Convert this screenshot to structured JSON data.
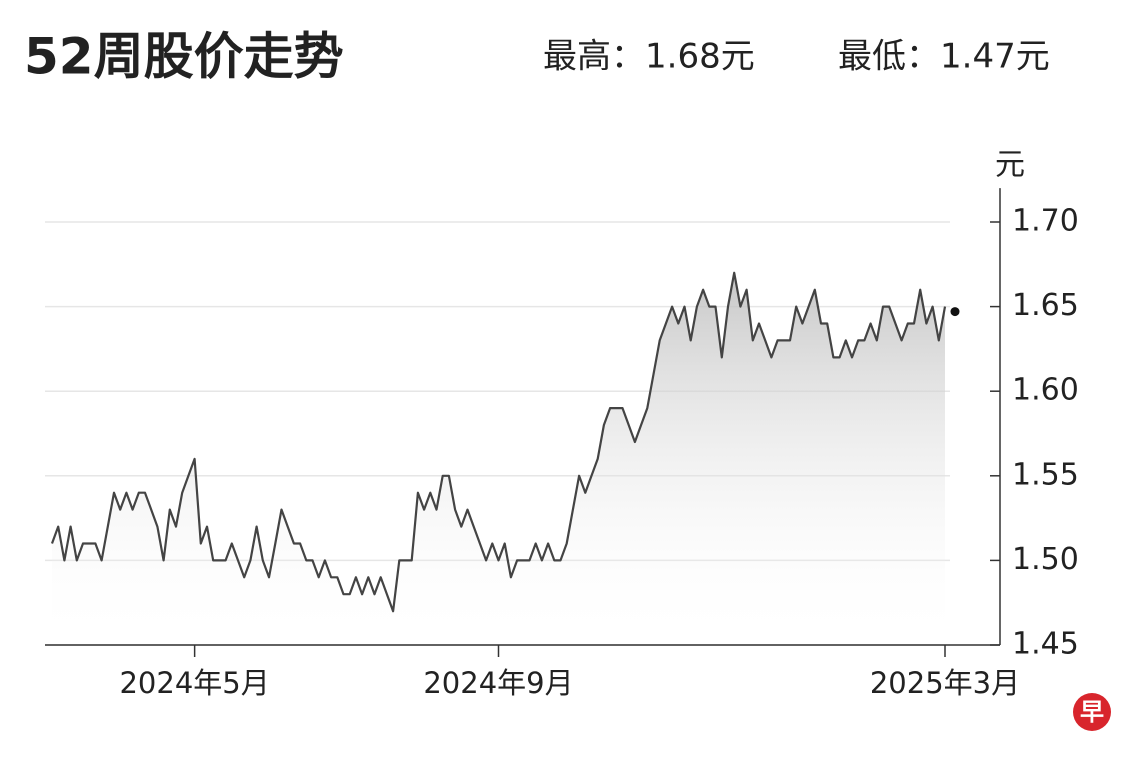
{
  "chart_data": {
    "type": "line",
    "title": "52周股价走势",
    "high_label": "最高：1.68元",
    "low_label": "最低：1.47元",
    "y_unit": "元",
    "logo": "早",
    "color": "#444444",
    "categories": [
      null,
      null,
      null,
      null,
      null,
      null,
      null,
      null,
      null,
      null,
      null,
      null,
      null,
      null,
      null,
      null,
      null,
      null,
      null,
      null,
      null,
      null,
      null,
      "2024年5月",
      null,
      null,
      null,
      null,
      null,
      null,
      null,
      null,
      null,
      null,
      null,
      null,
      null,
      null,
      null,
      null,
      null,
      null,
      null,
      null,
      null,
      null,
      null,
      null,
      null,
      null,
      null,
      null,
      null,
      null,
      null,
      null,
      null,
      null,
      null,
      null,
      null,
      null,
      null,
      null,
      null,
      null,
      null,
      null,
      null,
      null,
      null,
      null,
      "2024年9月",
      null,
      null,
      null,
      null,
      null,
      null,
      null,
      null,
      null,
      null,
      null,
      null,
      null,
      null,
      null,
      null,
      null,
      null,
      null,
      null,
      null,
      null,
      null,
      null,
      null,
      null,
      null,
      null,
      null,
      null,
      null,
      null,
      null,
      null,
      null,
      null,
      null,
      null,
      null,
      null,
      null,
      null,
      null,
      null,
      null,
      null,
      null,
      null,
      null,
      null,
      null,
      null,
      null,
      null,
      null,
      null,
      null,
      null,
      null,
      null,
      null,
      null,
      null,
      null,
      null,
      null,
      null,
      null,
      null,
      null,
      null,
      "2025年3月"
    ],
    "values": [
      1.51,
      1.52,
      1.5,
      1.52,
      1.5,
      1.51,
      1.51,
      1.51,
      1.5,
      1.52,
      1.54,
      1.53,
      1.54,
      1.53,
      1.54,
      1.54,
      1.53,
      1.52,
      1.5,
      1.53,
      1.52,
      1.54,
      1.55,
      1.56,
      1.51,
      1.52,
      1.5,
      1.5,
      1.5,
      1.51,
      1.5,
      1.49,
      1.5,
      1.52,
      1.5,
      1.49,
      1.51,
      1.53,
      1.52,
      1.51,
      1.51,
      1.5,
      1.5,
      1.49,
      1.5,
      1.49,
      1.49,
      1.48,
      1.48,
      1.49,
      1.48,
      1.49,
      1.48,
      1.49,
      1.48,
      1.47,
      1.5,
      1.5,
      1.5,
      1.54,
      1.53,
      1.54,
      1.53,
      1.55,
      1.55,
      1.53,
      1.52,
      1.53,
      1.52,
      1.51,
      1.5,
      1.51,
      1.5,
      1.51,
      1.49,
      1.5,
      1.5,
      1.5,
      1.51,
      1.5,
      1.51,
      1.5,
      1.5,
      1.51,
      1.53,
      1.55,
      1.54,
      1.55,
      1.56,
      1.58,
      1.59,
      1.59,
      1.59,
      1.58,
      1.57,
      1.58,
      1.59,
      1.61,
      1.63,
      1.64,
      1.65,
      1.64,
      1.65,
      1.63,
      1.65,
      1.66,
      1.65,
      1.65,
      1.62,
      1.65,
      1.67,
      1.65,
      1.66,
      1.63,
      1.64,
      1.63,
      1.62,
      1.63,
      1.63,
      1.63,
      1.65,
      1.64,
      1.65,
      1.66,
      1.64,
      1.64,
      1.62,
      1.62,
      1.63,
      1.62,
      1.63,
      1.63,
      1.64,
      1.63,
      1.65,
      1.65,
      1.64,
      1.63,
      1.64,
      1.64,
      1.66,
      1.64,
      1.65,
      1.63,
      1.65
    ],
    "ylim": [
      1.45,
      1.72
    ],
    "yticks": [
      {
        "value": 1.7,
        "label": "1.70"
      },
      {
        "value": 1.65,
        "label": "1.65"
      },
      {
        "value": 1.6,
        "label": "1.60"
      },
      {
        "value": 1.55,
        "label": "1.55"
      },
      {
        "value": 1.5,
        "label": "1.50"
      },
      {
        "value": 1.45,
        "label": "1.45"
      }
    ],
    "grid": true
  }
}
